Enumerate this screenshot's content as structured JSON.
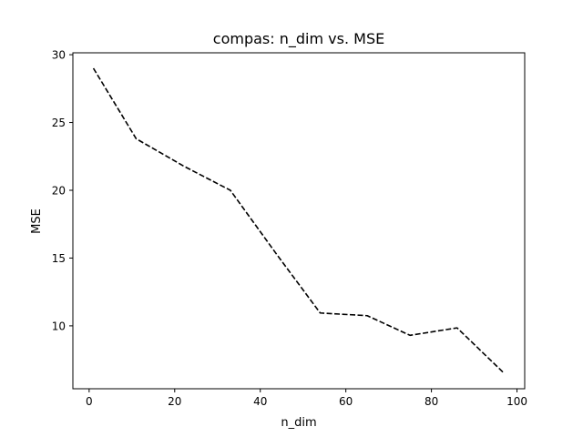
{
  "chart_data": {
    "type": "line",
    "title": "compas: n_dim vs. MSE",
    "xlabel": "n_dim",
    "ylabel": "MSE",
    "xlim": [
      -3.8,
      101.8
    ],
    "ylim": [
      5.36,
      30.14
    ],
    "xticks": [
      0,
      20,
      40,
      60,
      80,
      100
    ],
    "yticks": [
      10,
      15,
      20,
      25,
      30
    ],
    "grid": false,
    "line_style": "dashed",
    "line_color": "#000000",
    "series": [
      {
        "x": [
          1,
          11,
          22,
          33,
          44,
          54,
          65,
          75,
          86,
          97
        ],
        "values": [
          29.0,
          23.8,
          21.8,
          20.0,
          15.2,
          10.95,
          10.75,
          9.3,
          9.85,
          6.5
        ]
      }
    ]
  }
}
